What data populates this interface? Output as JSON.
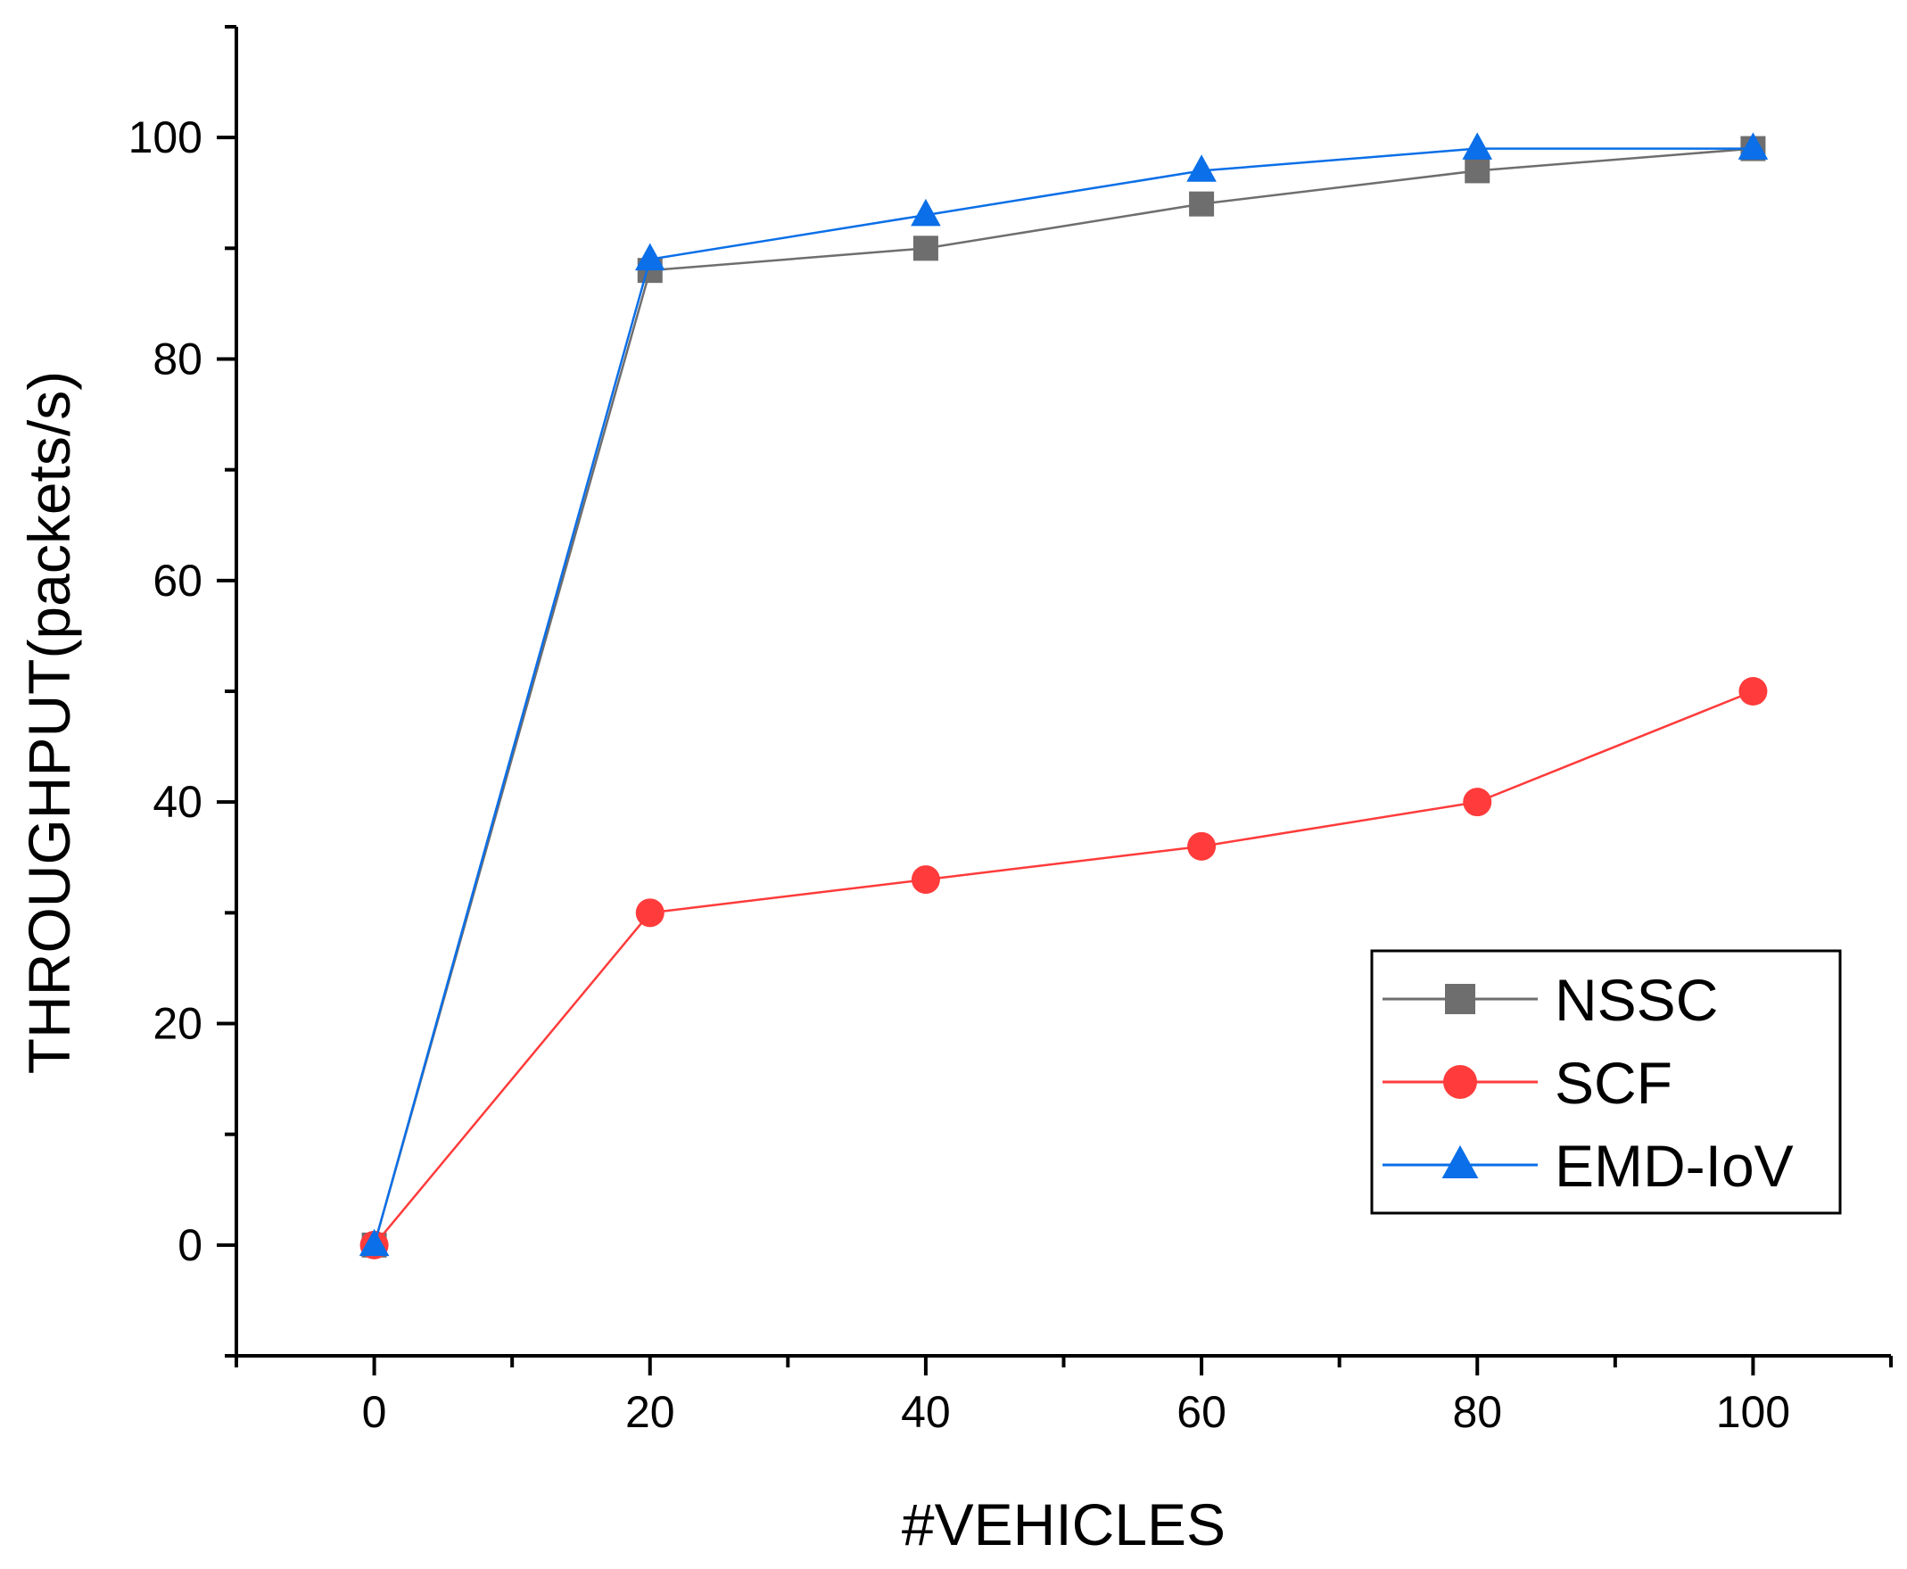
{
  "chart_data": {
    "type": "line",
    "title": "",
    "xlabel": "#VEHICLES",
    "ylabel": "THROUGHPUT(packets/s)",
    "xlim": [
      -10,
      110
    ],
    "ylim": [
      -10,
      110
    ],
    "x": [
      0,
      20,
      40,
      60,
      80,
      100
    ],
    "x_ticks": [
      0,
      20,
      40,
      60,
      80,
      100
    ],
    "x_tick_labels": [
      "0",
      "20",
      "40",
      "60",
      "80",
      "100"
    ],
    "y_ticks": [
      0,
      20,
      40,
      60,
      80,
      100
    ],
    "y_tick_labels": [
      "0",
      "20",
      "40",
      "60",
      "80",
      "100"
    ],
    "grid": false,
    "legend_position": "lower-right",
    "series": [
      {
        "name": "NSSC",
        "marker": "square",
        "color": "#6e6e6e",
        "values": [
          0,
          88,
          90,
          94,
          97,
          99
        ]
      },
      {
        "name": "SCF",
        "marker": "circle",
        "color": "#ff3b3b",
        "values": [
          0,
          30,
          33,
          36,
          40,
          50
        ]
      },
      {
        "name": "EMD-IoV",
        "marker": "triangle",
        "color": "#0a6fe8",
        "values": [
          0,
          89,
          93,
          97,
          99,
          99
        ]
      }
    ]
  }
}
